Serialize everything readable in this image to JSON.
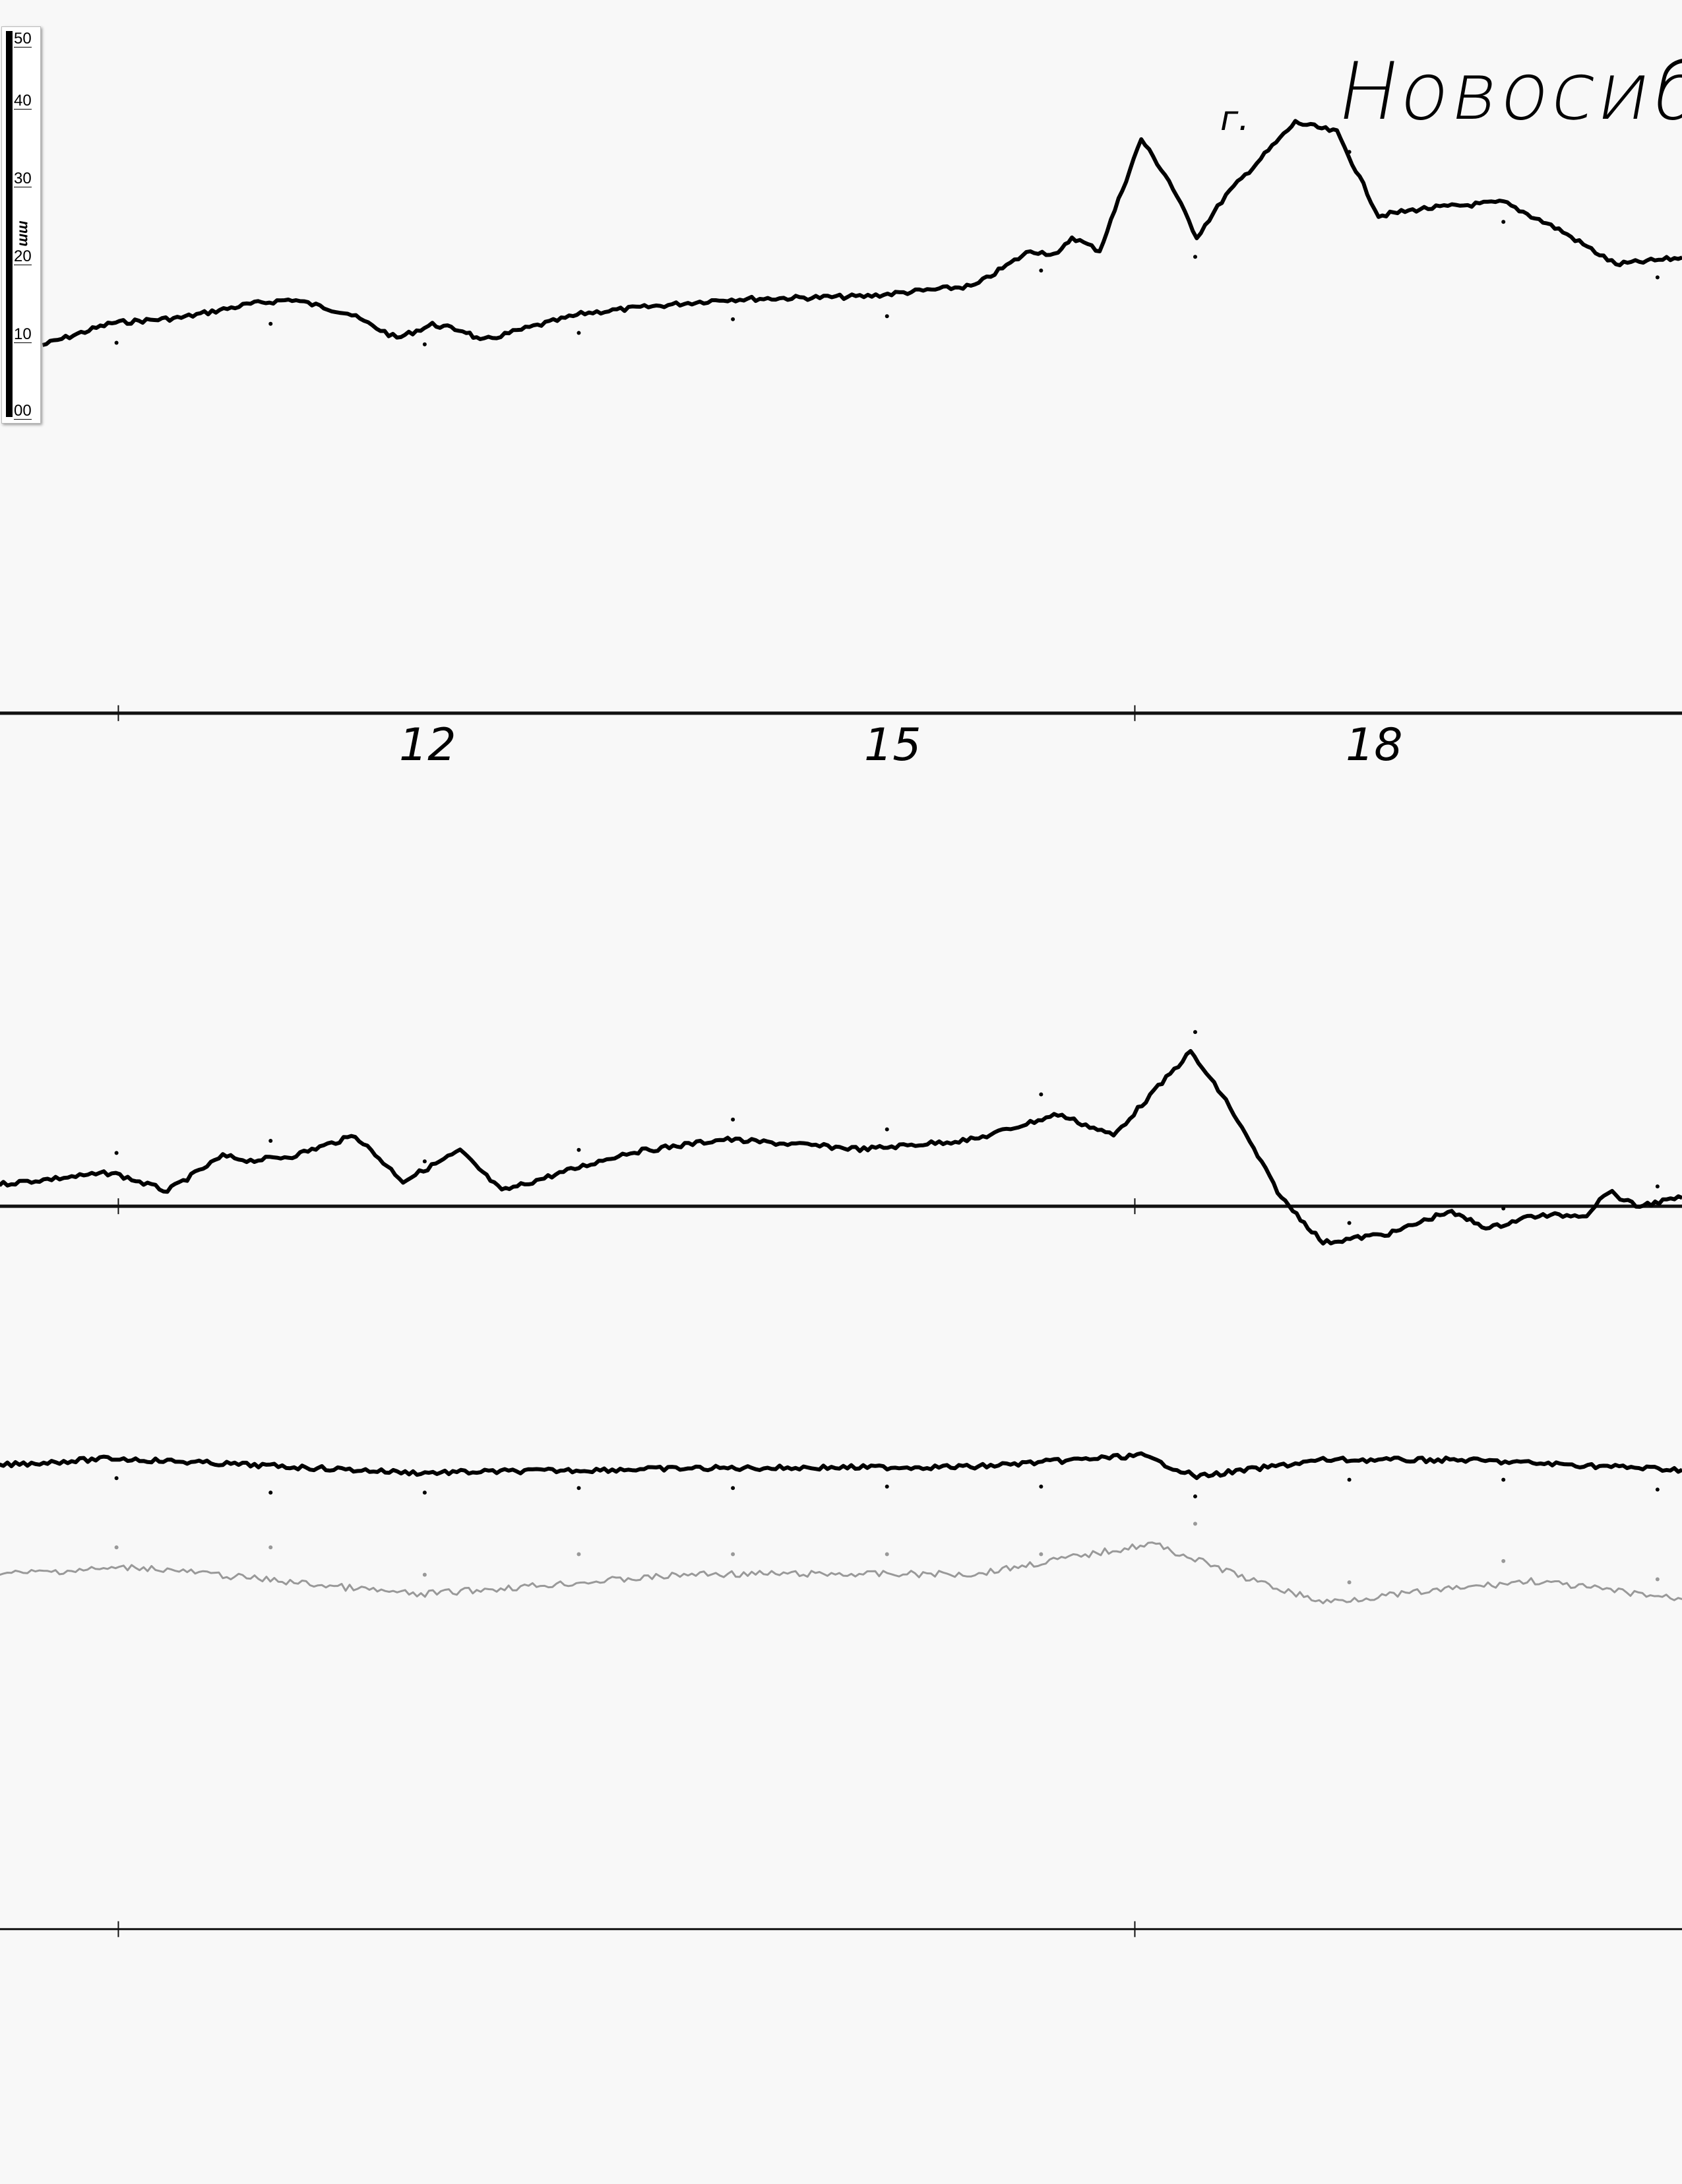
{
  "chart_data": {
    "type": "line",
    "title": "г. Новосибирск",
    "title_prefix": "г.",
    "title_text": "Новосиби",
    "xlabel": "",
    "ylabel": "mm",
    "x_ticks": [
      "12",
      "15",
      "18"
    ],
    "x_range_hours": [
      9.24,
      20.16
    ],
    "ruler": {
      "unit": "mm",
      "ticks": [
        "50",
        "40",
        "30",
        "20",
        "10",
        "00"
      ]
    },
    "grid": false,
    "series": [
      {
        "color": "#000000",
        "points": [
          [
            9.52,
            48.4
          ],
          [
            9.97,
            51.3
          ],
          [
            10.42,
            52.0
          ],
          [
            10.87,
            53.8
          ],
          [
            11.14,
            54.4
          ],
          [
            11.5,
            52.6
          ],
          [
            11.82,
            49.3
          ],
          [
            12.05,
            51.1
          ],
          [
            12.27,
            50.2
          ],
          [
            12.36,
            48.9
          ],
          [
            12.68,
            50.7
          ],
          [
            13.04,
            52.6
          ],
          [
            13.94,
            54.4
          ],
          [
            14.85,
            54.8
          ],
          [
            15.57,
            56.2
          ],
          [
            15.93,
            60.8
          ],
          [
            16.11,
            60.3
          ],
          [
            16.2,
            62.6
          ],
          [
            16.38,
            60.8
          ],
          [
            16.65,
            75.5
          ],
          [
            16.83,
            70.0
          ],
          [
            17.01,
            62.6
          ],
          [
            17.2,
            68.1
          ],
          [
            17.65,
            77.7
          ],
          [
            17.92,
            76.4
          ],
          [
            18.19,
            65.4
          ],
          [
            18.46,
            66.3
          ],
          [
            19.0,
            67.2
          ],
          [
            19.36,
            63.6
          ],
          [
            19.73,
            59.0
          ],
          [
            20.16,
            59.9
          ]
        ]
      },
      {
        "color": "#000000",
        "points": [
          [
            9.24,
            2.9
          ],
          [
            9.97,
            4.4
          ],
          [
            10.33,
            2.0
          ],
          [
            10.69,
            6.6
          ],
          [
            10.87,
            6.0
          ],
          [
            11.14,
            6.6
          ],
          [
            11.55,
            9.3
          ],
          [
            11.86,
            3.3
          ],
          [
            12.23,
            7.3
          ],
          [
            12.5,
            2.0
          ],
          [
            12.95,
            4.8
          ],
          [
            13.31,
            7.0
          ],
          [
            13.94,
            8.8
          ],
          [
            14.85,
            7.5
          ],
          [
            15.57,
            8.8
          ],
          [
            16.11,
            12.1
          ],
          [
            16.47,
            9.3
          ],
          [
            16.97,
            20.3
          ],
          [
            17.2,
            13.9
          ],
          [
            17.56,
            1.1
          ],
          [
            17.83,
            -4.8
          ],
          [
            18.28,
            -3.5
          ],
          [
            18.64,
            -0.7
          ],
          [
            18.91,
            -2.9
          ],
          [
            19.18,
            -1.3
          ],
          [
            19.54,
            -1.1
          ],
          [
            19.68,
            2.0
          ],
          [
            19.86,
            0
          ],
          [
            20.16,
            1.1
          ]
        ]
      },
      {
        "color": "#000000",
        "points": [
          [
            9.24,
            61.0
          ],
          [
            9.97,
            61.9
          ],
          [
            11.95,
            60.0
          ],
          [
            13.76,
            60.6
          ],
          [
            15.57,
            60.8
          ],
          [
            16.65,
            62.3
          ],
          [
            17.01,
            59.5
          ],
          [
            17.83,
            61.7
          ],
          [
            18.73,
            61.7
          ],
          [
            20.16,
            60.4
          ]
        ]
      },
      {
        "color": "#999999",
        "points": [
          [
            9.24,
            46.7
          ],
          [
            10.15,
            47.6
          ],
          [
            11.95,
            44.0
          ],
          [
            13.76,
            46.7
          ],
          [
            15.57,
            46.7
          ],
          [
            16.72,
            50.7
          ],
          [
            17.38,
            45.8
          ],
          [
            17.83,
            43.0
          ],
          [
            19.18,
            45.8
          ],
          [
            20.16,
            43.4
          ]
        ]
      }
    ]
  }
}
